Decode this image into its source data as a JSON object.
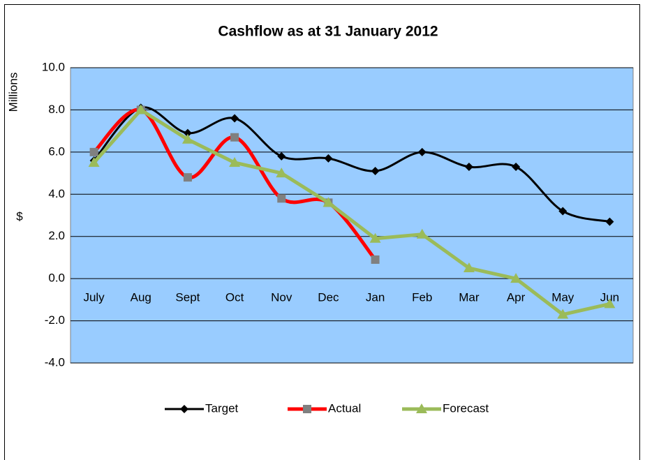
{
  "chart_data": {
    "type": "line",
    "title": "Cashflow as at 31 January 2012",
    "y_label_top": "Millions",
    "y_label": "$",
    "categories": [
      "July",
      "Aug",
      "Sept",
      "Oct",
      "Nov",
      "Dec",
      "Jan",
      "Feb",
      "Mar",
      "Apr",
      "May",
      "Jun"
    ],
    "series": [
      {
        "name": "Target",
        "color": "#000000",
        "marker": "diamond",
        "smooth": true,
        "values": [
          5.6,
          8.1,
          6.9,
          7.6,
          5.8,
          5.7,
          5.1,
          6.0,
          5.3,
          5.3,
          3.2,
          2.7
        ]
      },
      {
        "name": "Actual",
        "color": "#ff0000",
        "marker": "square",
        "marker_color": "#808080",
        "smooth": true,
        "values": [
          6.0,
          8.0,
          4.8,
          6.7,
          3.8,
          3.6,
          0.9,
          null,
          null,
          null,
          null,
          null
        ]
      },
      {
        "name": "Forecast",
        "color": "#9bbb59",
        "marker": "triangle",
        "smooth": false,
        "values": [
          5.5,
          8.0,
          6.6,
          5.5,
          5.0,
          3.6,
          1.9,
          2.1,
          0.5,
          0.0,
          -1.7,
          -1.2
        ]
      }
    ],
    "ylim": [
      -4,
      10
    ],
    "yticks": [
      {
        "value": -4,
        "label": "-4.0"
      },
      {
        "value": -2,
        "label": "-2.0"
      },
      {
        "value": 0,
        "label": "0.0"
      },
      {
        "value": 2,
        "label": "2.0"
      },
      {
        "value": 4,
        "label": "4.0"
      },
      {
        "value": 6,
        "label": "6.0"
      },
      {
        "value": 8,
        "label": "8.0"
      },
      {
        "value": 10,
        "label": "10.0"
      }
    ],
    "grid": true,
    "plot_background": "#99ccff",
    "legend": "bottom"
  }
}
